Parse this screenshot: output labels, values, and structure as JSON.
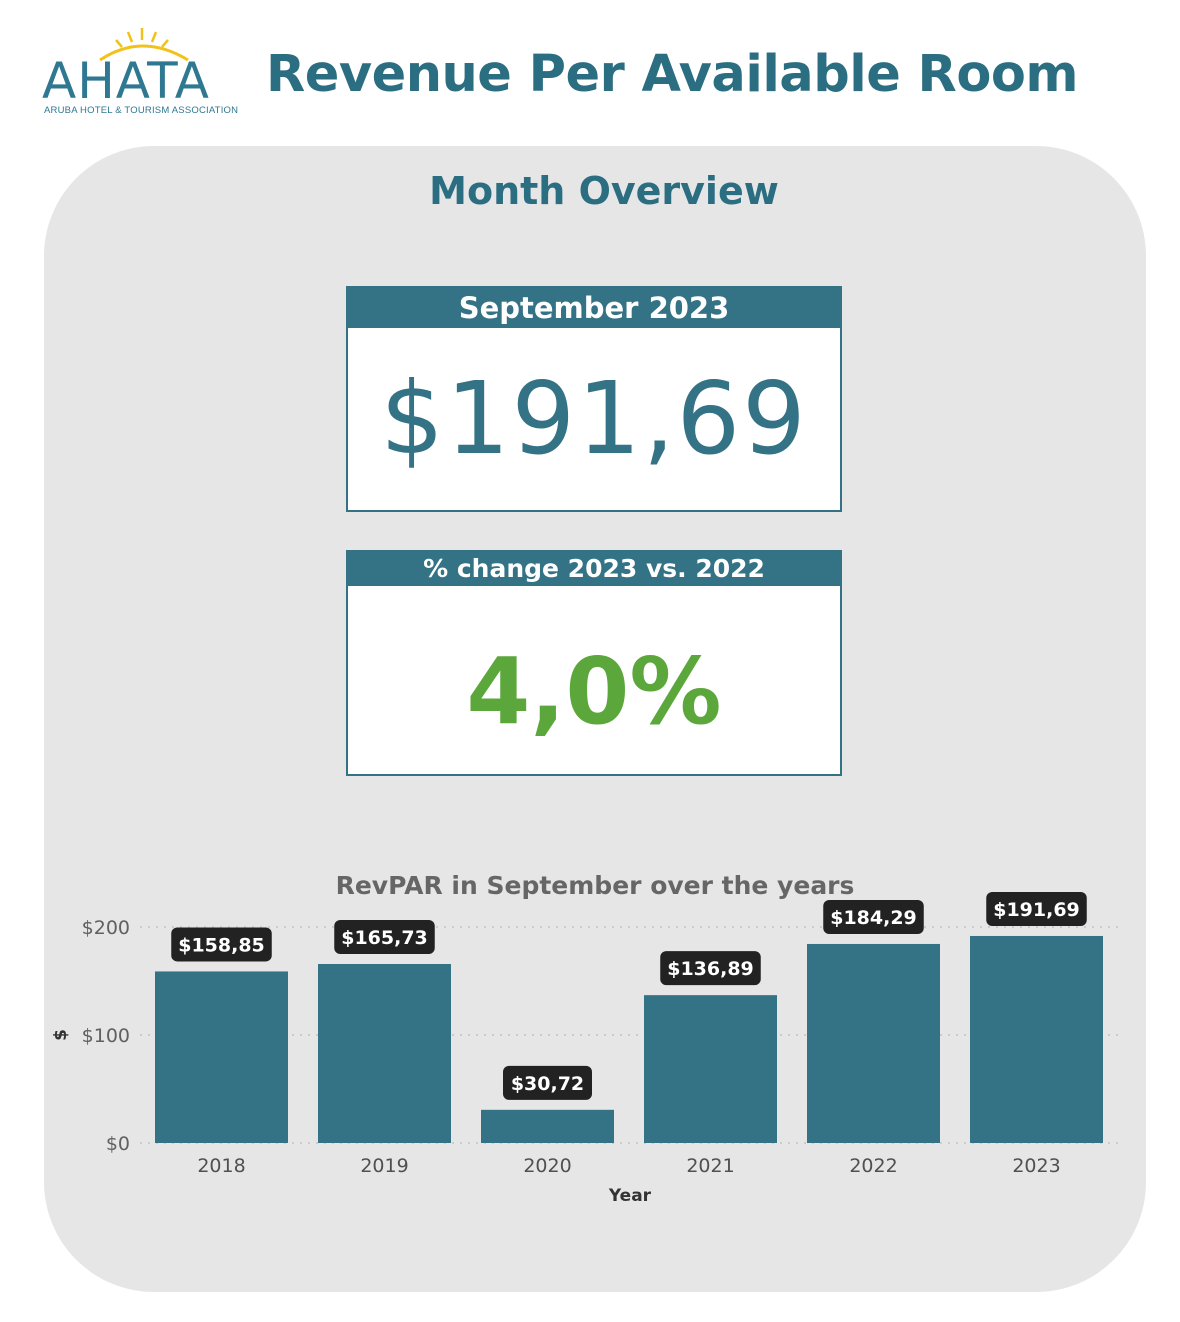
{
  "header": {
    "logo_text": "AHATA",
    "logo_subtitle": "ARUBA HOTEL & TOURISM ASSOCIATION",
    "title": "Revenue Per Available Room"
  },
  "panel": {
    "title": "Month Overview"
  },
  "kpi_main": {
    "label": "September 2023",
    "value": "$191,69"
  },
  "kpi_change": {
    "label": "% change 2023 vs. 2022",
    "value": "4,0%"
  },
  "colors": {
    "brand": "#2f7891",
    "bar": "#347285",
    "positive": "#5ca73c",
    "panel_bg": "#e6e6e6",
    "label_bg": "#222222"
  },
  "chart_data": {
    "type": "bar",
    "title": "RevPAR in September over the years",
    "xlabel": "Year",
    "ylabel": "$",
    "categories": [
      "2018",
      "2019",
      "2020",
      "2021",
      "2022",
      "2023"
    ],
    "values": [
      158.85,
      165.73,
      30.72,
      136.89,
      184.29,
      191.69
    ],
    "data_labels": [
      "$158,85",
      "$165,73",
      "$30,72",
      "$136,89",
      "$184,29",
      "$191,69"
    ],
    "y_ticks": [
      0,
      100,
      200
    ],
    "y_tick_labels": [
      "$0",
      "$100",
      "$200"
    ],
    "ylim": [
      0,
      200
    ],
    "grid": true,
    "legend": "none"
  }
}
